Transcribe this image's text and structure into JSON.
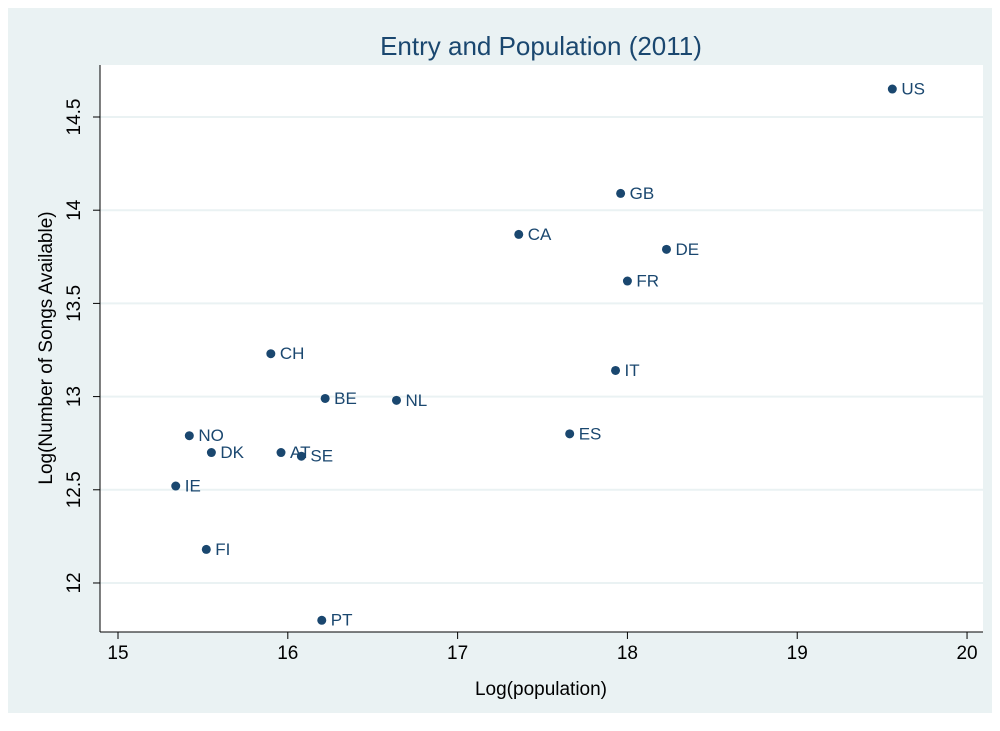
{
  "chart_data": {
    "type": "scatter",
    "title": "Entry and Population (2011)",
    "x_label": "Log(population)",
    "y_label": "Log(Number of Songs Available)",
    "point_labels": [
      "US",
      "GB",
      "CA",
      "DE",
      "FR",
      "CH",
      "IT",
      "BE",
      "NL",
      "NO",
      "ES",
      "DK",
      "AT",
      "SE",
      "IE",
      "FI",
      "PT"
    ],
    "x": [
      19.56,
      17.96,
      17.36,
      18.23,
      18.0,
      15.9,
      17.93,
      16.22,
      16.64,
      15.42,
      17.66,
      15.55,
      15.96,
      16.08,
      15.34,
      15.52,
      16.2
    ],
    "values": [
      14.65,
      14.09,
      13.87,
      13.79,
      13.62,
      13.23,
      13.14,
      12.99,
      12.98,
      12.79,
      12.8,
      12.7,
      12.7,
      12.68,
      12.52,
      12.18,
      11.8
    ],
    "color": "#1a476f",
    "xlim": [
      14.894,
      20.094
    ],
    "ylim": [
      11.737,
      14.779
    ],
    "xticks": [
      15,
      16,
      17,
      18,
      19,
      20
    ],
    "yticks": [
      12,
      12.5,
      13,
      13.5,
      14,
      14.5
    ],
    "grid": true
  }
}
